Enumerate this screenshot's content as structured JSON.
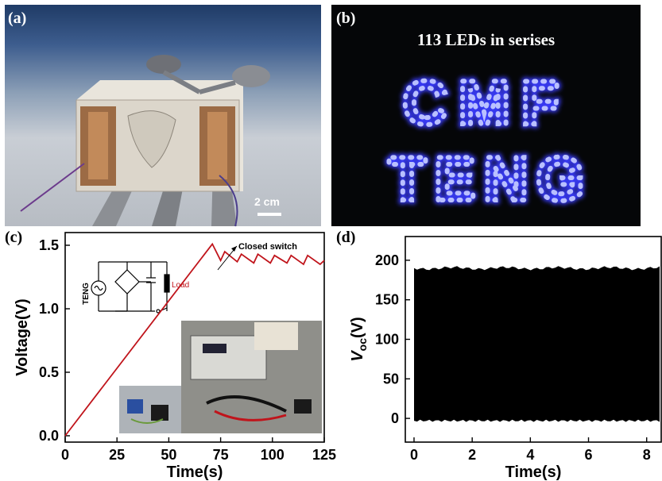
{
  "panels": {
    "a": {
      "label": "(a)",
      "scale_bar": "2 cm"
    },
    "b": {
      "label": "(b)",
      "caption": "113 LEDs in serises",
      "word1": "CMF",
      "word2": "TENG"
    },
    "c": {
      "label": "(c)",
      "annotation": "Closed switch",
      "circuit_source": "TENG",
      "circuit_load": "Load"
    },
    "d": {
      "label": "(d)"
    }
  },
  "chart_data": [
    {
      "id": "c",
      "type": "line",
      "xlabel": "Time(s)",
      "ylabel": "Voltage(V)",
      "xlim": [
        0,
        125
      ],
      "ylim": [
        -0.05,
        1.6
      ],
      "xticks": [
        0,
        25,
        50,
        75,
        100,
        125
      ],
      "yticks": [
        0.0,
        0.5,
        1.0,
        1.5
      ],
      "ytick_labels": [
        "0.0",
        "0.5",
        "1.0",
        "1.5"
      ],
      "color": "#c0141b",
      "series": [
        {
          "x": [
            0,
            71,
            75,
            77,
            83,
            85,
            91,
            93,
            99,
            101,
            107,
            109,
            115,
            117,
            123,
            125
          ],
          "y": [
            0.0,
            1.51,
            1.38,
            1.45,
            1.37,
            1.43,
            1.36,
            1.43,
            1.36,
            1.42,
            1.36,
            1.42,
            1.35,
            1.42,
            1.35,
            1.38
          ]
        }
      ]
    },
    {
      "id": "d",
      "type": "line",
      "xlabel": "Time(s)",
      "ylabel": "V",
      "ylabel_sub": "oc",
      "ylabel_unit": "(V)",
      "xlim": [
        -0.3,
        8.5
      ],
      "ylim": [
        -30,
        230
      ],
      "xticks": [
        0,
        2,
        4,
        6,
        8
      ],
      "yticks": [
        0,
        50,
        100,
        150,
        200
      ],
      "band": {
        "x_start": 0,
        "x_end": 8.5,
        "upper": 190,
        "lower": -3
      }
    }
  ]
}
